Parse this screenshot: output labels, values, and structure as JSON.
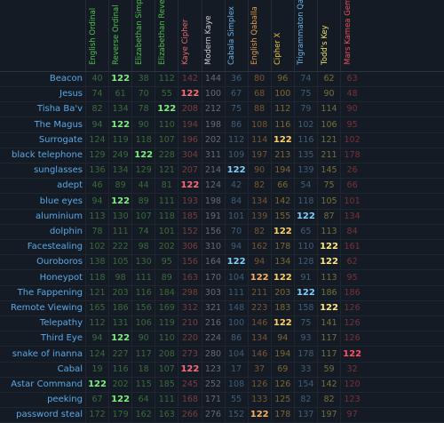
{
  "headers": [
    {
      "label": "English Ordinal",
      "color": "#4fc04f"
    },
    {
      "label": "Reverse Ordinal",
      "color": "#4fc04f"
    },
    {
      "label": "Elizabethan Simple",
      "color": "#4fc04f"
    },
    {
      "label": "Elizabethan Reverse",
      "color": "#4fc04f"
    },
    {
      "label": "Kaye Cipher",
      "color": "#e56a6a"
    },
    {
      "label": "Modern Kaye",
      "color": "#cfcfcf"
    },
    {
      "label": "Cabala Simplex",
      "color": "#6ab4e8"
    },
    {
      "label": "English Qaballa",
      "color": "#e59a4a"
    },
    {
      "label": "Cipher X",
      "color": "#e8c24a"
    },
    {
      "label": "Trigrammaton Qabalah",
      "color": "#6ab4e8"
    },
    {
      "label": "Todd's Key",
      "color": "#e8e06a"
    },
    {
      "label": "Mars Kamea Gematria",
      "color": "#e8505a"
    }
  ],
  "palette": {
    "dim": [
      "#3a6b3a",
      "#3a6b3a",
      "#3a6b3a",
      "#3a6b3a",
      "#7a3d3d",
      "#6a6a6a",
      "#3d5e78",
      "#7a5530",
      "#7a6a30",
      "#3d5e78",
      "#74703a",
      "#7a3038"
    ],
    "hl": [
      "#7ef07e",
      "#7ef07e",
      "#7ef07e",
      "#7ef07e",
      "#ff6b7a",
      "#ffffff",
      "#7fd0ff",
      "#ffb060",
      "#ffd060",
      "#7fd0ff",
      "#ffe880",
      "#ff5060"
    ]
  },
  "rows": [
    {
      "label": "Beacon",
      "values": [
        "40",
        "122",
        "38",
        "112",
        "142",
        "144",
        "36",
        "80",
        "96",
        "74",
        "62",
        "63"
      ],
      "hl": [
        1
      ]
    },
    {
      "label": "Jesus",
      "values": [
        "74",
        "61",
        "70",
        "55",
        "122",
        "100",
        "67",
        "68",
        "100",
        "75",
        "90",
        "48"
      ],
      "hl": [
        4
      ]
    },
    {
      "label": "Tisha Ba'v",
      "values": [
        "82",
        "134",
        "78",
        "122",
        "208",
        "212",
        "75",
        "88",
        "112",
        "79",
        "114",
        "90"
      ],
      "hl": [
        3
      ]
    },
    {
      "label": "The Magus",
      "values": [
        "94",
        "122",
        "90",
        "110",
        "194",
        "198",
        "86",
        "108",
        "116",
        "102",
        "106",
        "95"
      ],
      "hl": [
        1
      ]
    },
    {
      "label": "Surrogate",
      "values": [
        "124",
        "119",
        "118",
        "107",
        "196",
        "202",
        "112",
        "114",
        "122",
        "116",
        "121",
        "102"
      ],
      "hl": [
        8
      ]
    },
    {
      "label": "black telephone",
      "values": [
        "129",
        "249",
        "122",
        "228",
        "304",
        "311",
        "109",
        "197",
        "213",
        "135",
        "211",
        "178"
      ],
      "hl": [
        2
      ]
    },
    {
      "label": "sunglasses",
      "values": [
        "136",
        "134",
        "129",
        "121",
        "207",
        "214",
        "122",
        "90",
        "194",
        "139",
        "145",
        "26"
      ],
      "hl": [
        6
      ]
    },
    {
      "label": "adept",
      "values": [
        "46",
        "89",
        "44",
        "81",
        "122",
        "124",
        "42",
        "82",
        "66",
        "54",
        "75",
        "66"
      ],
      "hl": [
        4
      ]
    },
    {
      "label": "blue eyes",
      "values": [
        "94",
        "122",
        "89",
        "111",
        "193",
        "198",
        "84",
        "134",
        "142",
        "118",
        "105",
        "101"
      ],
      "hl": [
        1
      ]
    },
    {
      "label": "aluminium",
      "values": [
        "113",
        "130",
        "107",
        "118",
        "185",
        "191",
        "101",
        "139",
        "155",
        "122",
        "87",
        "134"
      ],
      "hl": [
        9
      ]
    },
    {
      "label": "dolphin",
      "values": [
        "78",
        "111",
        "74",
        "101",
        "152",
        "156",
        "70",
        "82",
        "122",
        "65",
        "113",
        "84"
      ],
      "hl": [
        8
      ]
    },
    {
      "label": "Facestealing",
      "values": [
        "102",
        "222",
        "98",
        "202",
        "306",
        "310",
        "94",
        "162",
        "178",
        "110",
        "122",
        "161"
      ],
      "hl": [
        10
      ]
    },
    {
      "label": "Ouroboros",
      "values": [
        "138",
        "105",
        "130",
        "95",
        "156",
        "164",
        "122",
        "94",
        "134",
        "128",
        "122",
        "62"
      ],
      "hl": [
        6,
        10
      ]
    },
    {
      "label": "Honeypot",
      "values": [
        "118",
        "98",
        "111",
        "89",
        "163",
        "170",
        "104",
        "122",
        "122",
        "91",
        "113",
        "95"
      ],
      "hl": [
        7,
        8
      ]
    },
    {
      "label": "The Fappening",
      "values": [
        "121",
        "203",
        "116",
        "184",
        "298",
        "303",
        "111",
        "211",
        "203",
        "122",
        "186",
        "186"
      ],
      "hl": [
        9
      ]
    },
    {
      "label": "Remote Viewing",
      "values": [
        "165",
        "186",
        "156",
        "169",
        "312",
        "321",
        "148",
        "223",
        "183",
        "158",
        "122",
        "126"
      ],
      "hl": [
        10
      ]
    },
    {
      "label": "Telepathy",
      "values": [
        "112",
        "131",
        "106",
        "119",
        "210",
        "216",
        "100",
        "146",
        "122",
        "75",
        "141",
        "126"
      ],
      "hl": [
        8
      ]
    },
    {
      "label": "Third Eye",
      "values": [
        "94",
        "122",
        "90",
        "110",
        "220",
        "224",
        "86",
        "134",
        "94",
        "93",
        "117",
        "126"
      ],
      "hl": [
        1
      ]
    },
    {
      "label": "snake of inanna",
      "values": [
        "124",
        "227",
        "117",
        "208",
        "273",
        "280",
        "104",
        "146",
        "194",
        "178",
        "117",
        "122"
      ],
      "hl": [
        11
      ]
    },
    {
      "label": "Cabal",
      "values": [
        "19",
        "116",
        "18",
        "107",
        "122",
        "123",
        "17",
        "37",
        "69",
        "33",
        "59",
        "32"
      ],
      "hl": [
        4
      ]
    },
    {
      "label": "Astar Command",
      "values": [
        "122",
        "202",
        "115",
        "185",
        "245",
        "252",
        "108",
        "126",
        "126",
        "154",
        "142",
        "120"
      ],
      "hl": [
        0
      ]
    },
    {
      "label": "peeking",
      "values": [
        "67",
        "122",
        "64",
        "111",
        "168",
        "171",
        "55",
        "133",
        "125",
        "82",
        "82",
        "123"
      ],
      "hl": [
        1
      ]
    },
    {
      "label": "password steal",
      "values": [
        "172",
        "179",
        "162",
        "163",
        "266",
        "276",
        "152",
        "122",
        "178",
        "137",
        "197",
        "97"
      ],
      "hl": [
        7
      ]
    }
  ]
}
